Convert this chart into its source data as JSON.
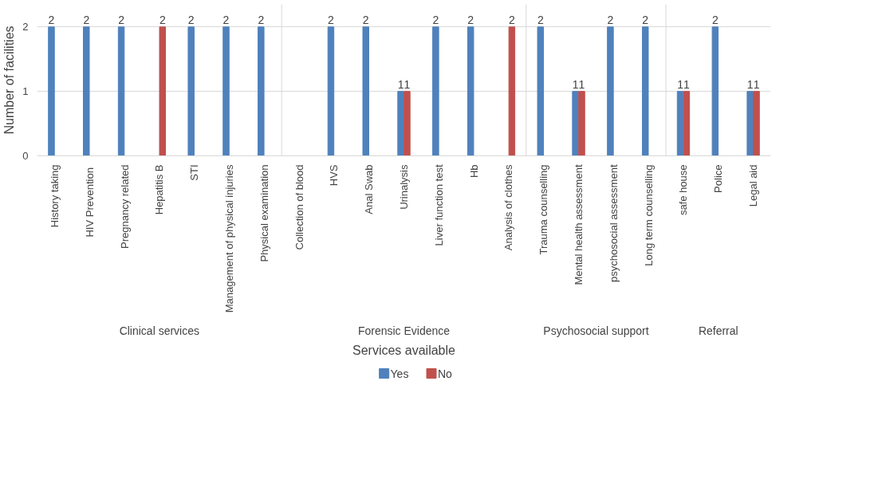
{
  "chart_data": {
    "type": "bar",
    "xlabel": "Services available",
    "ylabel": "Number of facilities",
    "categories": [
      "History taking",
      "HIV  Prevention",
      "Pregnancy related",
      "Hepatitis B",
      "STI",
      "Management of physical injuries",
      "Physical examination",
      "Collection of blood",
      "HVS",
      "Anal Swab",
      "Urinalysis",
      "Liver function test",
      "Hb",
      "Analysis of clothes",
      "Trauma counselling",
      "Mental health assessment",
      "psychosocial assessment",
      "Long term counselling",
      "safe house",
      "Police",
      "Legal aid"
    ],
    "series": [
      {
        "name": "Yes",
        "color": "#4f81bd",
        "values": [
          2,
          2,
          2,
          null,
          2,
          2,
          2,
          null,
          2,
          2,
          1,
          2,
          2,
          null,
          2,
          1,
          2,
          2,
          1,
          2,
          1
        ]
      },
      {
        "name": "No",
        "color": "#c0504d",
        "values": [
          null,
          null,
          null,
          2,
          null,
          null,
          null,
          null,
          null,
          null,
          1,
          null,
          null,
          2,
          null,
          1,
          null,
          null,
          1,
          null,
          1
        ]
      }
    ],
    "annotations": [
      "Clinical services",
      "Forensic Evidence",
      "Psychosocial support",
      "Referral"
    ],
    "ylim": [
      0,
      2.35
    ],
    "yticks": [
      0,
      1,
      2
    ],
    "grid": "y",
    "legend": "bottom",
    "data_labels": true
  }
}
